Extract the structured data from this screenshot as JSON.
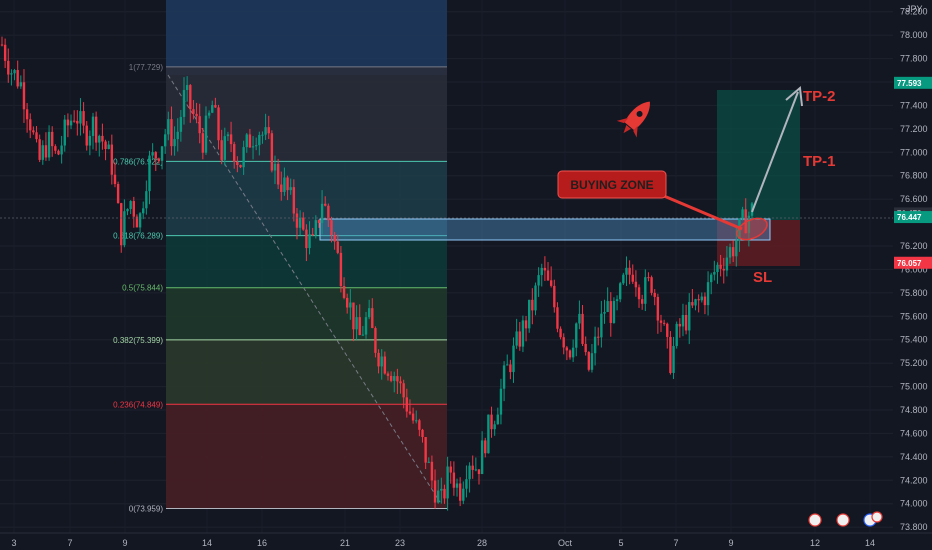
{
  "chart_data": {
    "type": "candlestick",
    "currency": "JPY",
    "ylim": [
      73.75,
      78.3
    ],
    "y_ticks": [
      73.8,
      74.0,
      74.2,
      74.4,
      74.6,
      74.8,
      75.0,
      75.2,
      75.4,
      75.6,
      75.8,
      76.0,
      76.2,
      76.6,
      76.8,
      77.0,
      77.2,
      77.4,
      77.6,
      77.8,
      78.0,
      78.2
    ],
    "y_tick_labels": [
      "73.800",
      "74.000",
      "74.200",
      "74.400",
      "74.600",
      "74.800",
      "75.000",
      "75.200",
      "75.400",
      "75.600",
      "75.800",
      "76.000",
      "76.200",
      "76.600",
      "76.800",
      "77.000",
      "77.200",
      "77.400",
      "77.600",
      "77.800",
      "78.000",
      "78.200"
    ],
    "x_day_labels": [
      "3",
      "7",
      "9",
      "14",
      "16",
      "21",
      "23",
      "28",
      "Oct",
      "5",
      "7",
      "9",
      "12",
      "14"
    ],
    "grid": true,
    "price_badges": [
      {
        "label": "77.593",
        "value": 77.593,
        "color": "#089981"
      },
      {
        "label": "76.478",
        "value": 76.478,
        "color": "#2a2e39"
      },
      {
        "label": "76.447",
        "value": 76.447,
        "color": "#089981"
      },
      {
        "label": "76.057",
        "value": 76.057,
        "color": "#f23645"
      }
    ],
    "path_points": [
      [
        0,
        77.92
      ],
      [
        1,
        77.7
      ],
      [
        2,
        77.6
      ],
      [
        3,
        77.3
      ],
      [
        4,
        76.9
      ],
      [
        5,
        77.1
      ],
      [
        6,
        76.95
      ],
      [
        7,
        77.2
      ],
      [
        8,
        77.35
      ],
      [
        9,
        77.15
      ],
      [
        10,
        77.25
      ],
      [
        11,
        77.1
      ],
      [
        12,
        76.9
      ],
      [
        13,
        76.3
      ],
      [
        14,
        76.6
      ],
      [
        15,
        76.4
      ],
      [
        16,
        76.9
      ],
      [
        17,
        77.0
      ],
      [
        18,
        77.2
      ],
      [
        19,
        77.1
      ],
      [
        20,
        77.5
      ],
      [
        21,
        77.3
      ],
      [
        22,
        77.1
      ],
      [
        23,
        77.4
      ],
      [
        24,
        77.0
      ],
      [
        25,
        77.1
      ],
      [
        26,
        76.9
      ],
      [
        27,
        77.1
      ],
      [
        28,
        77.2
      ],
      [
        29,
        77.1
      ],
      [
        30,
        76.8
      ],
      [
        31,
        76.7
      ],
      [
        32,
        76.5
      ],
      [
        33,
        76.3
      ],
      [
        34,
        76.2
      ],
      [
        35,
        76.6
      ],
      [
        36,
        76.35
      ],
      [
        37,
        76.0
      ],
      [
        38,
        75.7
      ],
      [
        39,
        75.4
      ],
      [
        40,
        75.6
      ],
      [
        41,
        75.3
      ],
      [
        42,
        75.2
      ],
      [
        43,
        75.1
      ],
      [
        44,
        74.9
      ],
      [
        45,
        74.7
      ],
      [
        46,
        74.5
      ],
      [
        47,
        74.2
      ],
      [
        48,
        74.0
      ],
      [
        49,
        74.3
      ],
      [
        50,
        74.1
      ],
      [
        51,
        74.4
      ],
      [
        52,
        74.3
      ],
      [
        53,
        74.6
      ],
      [
        54,
        74.8
      ],
      [
        55,
        75.1
      ],
      [
        56,
        75.3
      ],
      [
        57,
        75.5
      ],
      [
        58,
        75.7
      ],
      [
        59,
        76.0
      ],
      [
        60,
        75.8
      ],
      [
        61,
        75.5
      ],
      [
        62,
        75.3
      ],
      [
        63,
        75.6
      ],
      [
        64,
        75.1
      ],
      [
        65,
        75.4
      ],
      [
        66,
        75.7
      ],
      [
        67,
        75.6
      ],
      [
        68,
        75.9
      ],
      [
        69,
        76.0
      ],
      [
        70,
        75.8
      ],
      [
        71,
        75.9
      ],
      [
        72,
        75.6
      ],
      [
        73,
        75.2
      ],
      [
        74,
        75.5
      ],
      [
        75,
        75.6
      ],
      [
        76,
        75.7
      ],
      [
        77,
        75.8
      ],
      [
        78,
        76.0
      ],
      [
        79,
        76.1
      ],
      [
        80,
        76.2
      ],
      [
        81,
        76.4
      ],
      [
        82,
        76.5
      ]
    ],
    "fib_levels": [
      {
        "label": "1(77.729)",
        "value": 77.729,
        "color": "#787b86"
      },
      {
        "label": "0.786(76.922)",
        "value": 76.922,
        "color": "#4cc9b0"
      },
      {
        "label": "0.618(76.289)",
        "value": 76.289,
        "color": "#4cc9b0"
      },
      {
        "label": "0.5(75.844)",
        "value": 75.844,
        "color": "#66bb6a"
      },
      {
        "label": "0.382(75.399)",
        "value": 75.399,
        "color": "#a5d6a7"
      },
      {
        "label": "0.236(74.849)",
        "value": 74.849,
        "color": "#f23645"
      },
      {
        "label": "0(73.959)",
        "value": 73.959,
        "color": "#b2b5be"
      }
    ],
    "annotations": {
      "buying_zone": "BUYING ZONE",
      "tp1": "TP-1",
      "tp2": "TP-2",
      "sl": "SL"
    },
    "colors": {
      "background": "#131722",
      "up": "#089981",
      "down": "#f23645",
      "annotation": "#e53935"
    }
  }
}
